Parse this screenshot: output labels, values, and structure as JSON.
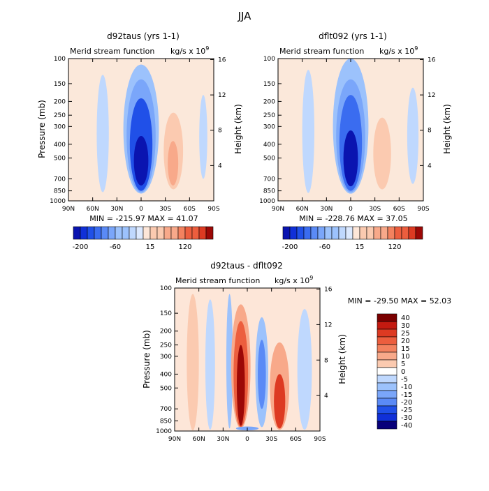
{
  "page_title": "JJA",
  "colors": {
    "blue_scale": [
      "#08007a",
      "#0a14b0",
      "#1030d8",
      "#2050e8",
      "#3a6cf0",
      "#5a8af6",
      "#7aa6fa",
      "#9cc2fc",
      "#bfd8fe",
      "#dce9ff"
    ],
    "red_scale": [
      "#fde6d8",
      "#fbcab0",
      "#f8a98a",
      "#f3825f",
      "#ec5e3e",
      "#dd3a22",
      "#c41a10",
      "#9c0806",
      "#7a0000"
    ]
  },
  "chart_data": [
    {
      "id": "panel1",
      "type": "contour",
      "title": "d92taus (yrs 1-1)",
      "left_label": "Merid stream function",
      "right_label": "kg/s x 10",
      "right_label_exp": "9",
      "xlabel": "",
      "ylabel": "Pressure (mb)",
      "y2label": "Height (km)",
      "x_ticks": [
        "90N",
        "60N",
        "30N",
        "0",
        "30S",
        "60S",
        "90S"
      ],
      "x_range": [
        90,
        -90
      ],
      "y_ticks": [
        "100",
        "150",
        "200",
        "250",
        "300",
        "400",
        "500",
        "700",
        "850",
        "1000"
      ],
      "y_tick_values": [
        100,
        150,
        200,
        250,
        300,
        400,
        500,
        700,
        850,
        1000
      ],
      "y_range": [
        100,
        1000
      ],
      "y2_ticks": [
        "4",
        "8",
        "12",
        "16"
      ],
      "y2_tick_values": [
        4,
        8,
        12,
        16
      ],
      "min_max_text": "MIN = -215.97   MAX =  41.07",
      "min": -215.97,
      "max": 41.07,
      "cells": [
        {
          "lat": [
            55,
            40
          ],
          "p": [
            130,
            870
          ],
          "value": -15
        },
        {
          "lat": [
            22,
            -22
          ],
          "p": [
            110,
            890
          ],
          "value": -40
        },
        {
          "lat": [
            18,
            -18
          ],
          "p": [
            140,
            870
          ],
          "value": -80
        },
        {
          "lat": [
            14,
            -14
          ],
          "p": [
            190,
            850
          ],
          "value": -140
        },
        {
          "lat": [
            9,
            -9
          ],
          "p": [
            350,
            780
          ],
          "value": -200
        },
        {
          "lat": [
            -28,
            -52
          ],
          "p": [
            240,
            830
          ],
          "value": 15
        },
        {
          "lat": [
            -33,
            -46
          ],
          "p": [
            380,
            780
          ],
          "value": 45
        },
        {
          "lat": [
            -72,
            -82
          ],
          "p": [
            180,
            700
          ],
          "value": -15
        }
      ]
    },
    {
      "id": "panel2",
      "type": "contour",
      "title": "dflt092 (yrs 1-1)",
      "left_label": "Merid stream function",
      "right_label": "kg/s x 10",
      "right_label_exp": "9",
      "xlabel": "",
      "ylabel": "",
      "y2label": "Height (km)",
      "x_ticks": [
        "90N",
        "60N",
        "30N",
        "0",
        "30S",
        "60S",
        "90S"
      ],
      "x_range": [
        90,
        -90
      ],
      "y_ticks": [
        "100",
        "150",
        "200",
        "250",
        "300",
        "400",
        "500",
        "700",
        "850",
        "1000"
      ],
      "y_tick_values": [
        100,
        150,
        200,
        250,
        300,
        400,
        500,
        700,
        850,
        1000
      ],
      "y_range": [
        100,
        1000
      ],
      "y2_ticks": [
        "4",
        "8",
        "12",
        "16"
      ],
      "y2_tick_values": [
        4,
        8,
        12,
        16
      ],
      "min_max_text": "MIN = -228.76   MAX =  37.05",
      "min": -228.76,
      "max": 37.05,
      "cells": [
        {
          "lat": [
            60,
            45
          ],
          "p": [
            120,
            880
          ],
          "value": -15
        },
        {
          "lat": [
            22,
            -22
          ],
          "p": [
            100,
            890
          ],
          "value": -40
        },
        {
          "lat": [
            18,
            -18
          ],
          "p": [
            140,
            870
          ],
          "value": -80
        },
        {
          "lat": [
            14,
            -14
          ],
          "p": [
            180,
            850
          ],
          "value": -140
        },
        {
          "lat": [
            9,
            -9
          ],
          "p": [
            320,
            790
          ],
          "value": -210
        },
        {
          "lat": [
            -28,
            -50
          ],
          "p": [
            260,
            830
          ],
          "value": 15
        },
        {
          "lat": [
            -33,
            -45
          ],
          "p": [
            380,
            780
          ],
          "value": 40
        },
        {
          "lat": [
            -70,
            -84
          ],
          "p": [
            160,
            760
          ],
          "value": -15
        }
      ]
    },
    {
      "id": "panel3",
      "type": "contour",
      "title": "d92taus - dflt092",
      "left_label": "Merid stream function",
      "right_label": "kg/s x 10",
      "right_label_exp": "9",
      "xlabel": "",
      "ylabel": "Pressure (mb)",
      "y2label": "Height (km)",
      "x_ticks": [
        "90N",
        "60N",
        "30N",
        "0",
        "30S",
        "60S",
        "90S"
      ],
      "x_range": [
        90,
        -90
      ],
      "y_ticks": [
        "100",
        "150",
        "200",
        "250",
        "300",
        "400",
        "500",
        "700",
        "850",
        "1000"
      ],
      "y_tick_values": [
        100,
        150,
        200,
        250,
        300,
        400,
        500,
        700,
        850,
        1000
      ],
      "y_range": [
        100,
        1000
      ],
      "y2_ticks": [
        "4",
        "8",
        "12",
        "16"
      ],
      "y2_tick_values": [
        4,
        8,
        12,
        16
      ],
      "min_max_text": "MIN = -29.50   MAX =  52.03",
      "min": -29.5,
      "max": 52.03,
      "cells": [
        {
          "lat": [
            75,
            60
          ],
          "p": [
            110,
            990
          ],
          "value": 5
        },
        {
          "lat": [
            52,
            40
          ],
          "p": [
            120,
            980
          ],
          "value": -5
        },
        {
          "lat": [
            26,
            18
          ],
          "p": [
            110,
            960
          ],
          "value": -10
        },
        {
          "lat": [
            20,
            -4
          ],
          "p": [
            130,
            960
          ],
          "value": 10
        },
        {
          "lat": [
            17,
            -1
          ],
          "p": [
            170,
            940
          ],
          "value": 20
        },
        {
          "lat": [
            13,
            3
          ],
          "p": [
            250,
            920
          ],
          "value": 35
        },
        {
          "lat": [
            -10,
            -26
          ],
          "p": [
            160,
            940
          ],
          "value": -10
        },
        {
          "lat": [
            -13,
            -23
          ],
          "p": [
            230,
            700
          ],
          "value": -20
        },
        {
          "lat": [
            -28,
            -52
          ],
          "p": [
            240,
            980
          ],
          "value": 10
        },
        {
          "lat": [
            -33,
            -47
          ],
          "p": [
            400,
            960
          ],
          "value": 25
        },
        {
          "lat": [
            -62,
            -80
          ],
          "p": [
            140,
            980
          ],
          "value": -5
        },
        {
          "lat": [
            14,
            -14
          ],
          "p": [
            930,
            990
          ],
          "value": -15
        }
      ]
    }
  ],
  "colorbar_top_left": {
    "labels": [
      "-200",
      "-60",
      "15",
      "120"
    ],
    "values": [
      -200,
      -175,
      -150,
      -125,
      -100,
      -80,
      -60,
      -40,
      -20,
      -5,
      5,
      15,
      30,
      45,
      60,
      80,
      100,
      120,
      150,
      180
    ]
  },
  "colorbar_top_right": {
    "labels": [
      "-200",
      "-60",
      "15",
      "120"
    ],
    "values": [
      -200,
      -175,
      -150,
      -125,
      -100,
      -80,
      -60,
      -40,
      -20,
      -5,
      5,
      15,
      30,
      45,
      60,
      80,
      100,
      120,
      150,
      180
    ]
  },
  "colorbar_bottom": {
    "labels": [
      "40",
      "30",
      "25",
      "20",
      "15",
      "10",
      "5",
      "0",
      "-5",
      "-10",
      "-15",
      "-20",
      "-25",
      "-30",
      "-40"
    ],
    "values": [
      40,
      30,
      25,
      20,
      15,
      10,
      5,
      0,
      -5,
      -10,
      -15,
      -20,
      -25,
      -30,
      -40
    ]
  }
}
